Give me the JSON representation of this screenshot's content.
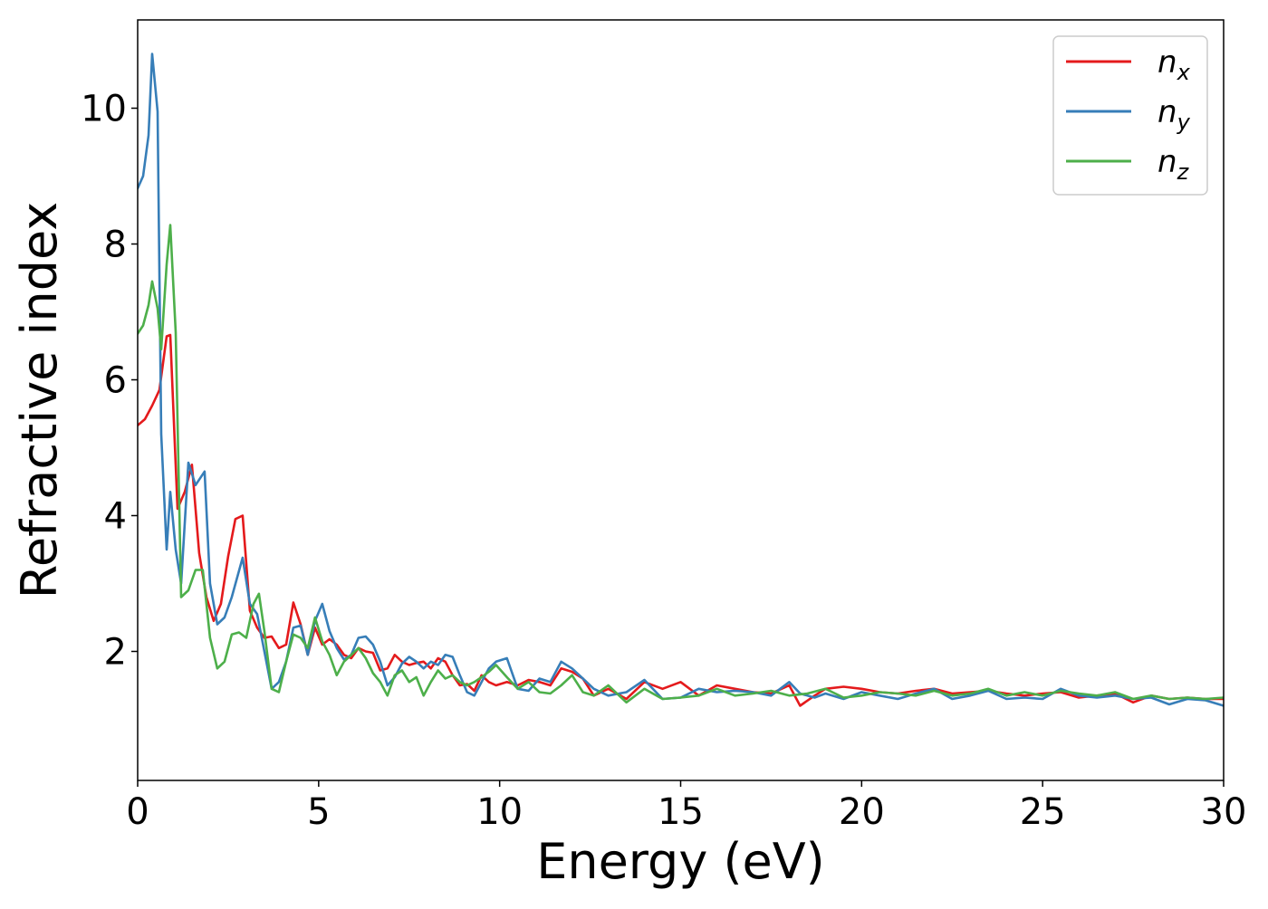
{
  "chart_data": {
    "type": "line",
    "title": "",
    "xlabel": "Energy (eV)",
    "ylabel": "Refractive index",
    "xlim": [
      0,
      30
    ],
    "ylim": [
      0.1,
      11.3
    ],
    "xticks": [
      0,
      5,
      10,
      15,
      20,
      25,
      30
    ],
    "yticks": [
      2,
      4,
      6,
      8,
      10
    ],
    "grid": false,
    "legend_position": "top-right",
    "series": [
      {
        "name": "n",
        "subscript": "x",
        "color": "#e41a1c",
        "x": [
          0,
          0.2,
          0.4,
          0.6,
          0.8,
          0.9,
          1.1,
          1.3,
          1.5,
          1.7,
          1.9,
          2.1,
          2.3,
          2.5,
          2.7,
          2.9,
          3.1,
          3.3,
          3.5,
          3.7,
          3.9,
          4.1,
          4.3,
          4.5,
          4.7,
          4.9,
          5.1,
          5.3,
          5.5,
          5.7,
          5.9,
          6.1,
          6.3,
          6.5,
          6.7,
          6.9,
          7.1,
          7.3,
          7.5,
          7.7,
          7.9,
          8.1,
          8.3,
          8.5,
          8.7,
          8.9,
          9.1,
          9.3,
          9.5,
          9.7,
          9.9,
          10.2,
          10.5,
          10.8,
          11.1,
          11.4,
          11.7,
          12.0,
          12.3,
          12.6,
          13.0,
          13.5,
          14.0,
          14.5,
          15.0,
          15.5,
          16.0,
          16.5,
          17.0,
          17.5,
          18.0,
          18.3,
          18.7,
          19.0,
          19.5,
          20.0,
          20.5,
          21.0,
          21.5,
          22.0,
          22.5,
          23.0,
          23.5,
          24.0,
          24.5,
          25.0,
          25.5,
          26.0,
          26.5,
          27.0,
          27.5,
          28.0,
          28.5,
          29.0,
          29.5,
          30.0
        ],
        "y": [
          5.33,
          5.42,
          5.62,
          5.85,
          6.64,
          6.66,
          4.1,
          4.35,
          4.75,
          3.45,
          2.8,
          2.45,
          2.7,
          3.4,
          3.95,
          4.0,
          2.6,
          2.35,
          2.2,
          2.22,
          2.05,
          2.1,
          2.72,
          2.4,
          1.95,
          2.35,
          2.1,
          2.18,
          2.1,
          1.95,
          1.9,
          2.05,
          2.0,
          1.98,
          1.72,
          1.75,
          1.95,
          1.85,
          1.8,
          1.83,
          1.85,
          1.75,
          1.9,
          1.85,
          1.65,
          1.5,
          1.52,
          1.42,
          1.65,
          1.55,
          1.5,
          1.55,
          1.5,
          1.58,
          1.55,
          1.5,
          1.75,
          1.7,
          1.6,
          1.35,
          1.45,
          1.3,
          1.55,
          1.45,
          1.55,
          1.35,
          1.5,
          1.45,
          1.4,
          1.38,
          1.5,
          1.2,
          1.35,
          1.45,
          1.48,
          1.45,
          1.4,
          1.38,
          1.42,
          1.45,
          1.38,
          1.4,
          1.42,
          1.38,
          1.35,
          1.38,
          1.4,
          1.32,
          1.35,
          1.38,
          1.25,
          1.35,
          1.3,
          1.32,
          1.3,
          1.3
        ]
      },
      {
        "name": "n",
        "subscript": "y",
        "color": "#377eb8",
        "x": [
          0,
          0.15,
          0.3,
          0.4,
          0.55,
          0.65,
          0.8,
          0.9,
          1.05,
          1.2,
          1.4,
          1.6,
          1.85,
          2.0,
          2.2,
          2.4,
          2.6,
          2.9,
          3.1,
          3.3,
          3.5,
          3.7,
          3.9,
          4.1,
          4.3,
          4.5,
          4.7,
          4.9,
          5.1,
          5.3,
          5.5,
          5.7,
          5.9,
          6.1,
          6.3,
          6.5,
          6.7,
          6.9,
          7.1,
          7.3,
          7.5,
          7.7,
          7.9,
          8.1,
          8.3,
          8.5,
          8.7,
          8.9,
          9.1,
          9.3,
          9.5,
          9.7,
          9.9,
          10.2,
          10.5,
          10.8,
          11.1,
          11.4,
          11.7,
          12.0,
          12.3,
          12.6,
          13.0,
          13.5,
          14.0,
          14.5,
          15.0,
          15.5,
          16.0,
          16.5,
          17.0,
          17.5,
          18.0,
          18.3,
          18.7,
          19.0,
          19.5,
          20.0,
          20.5,
          21.0,
          21.5,
          22.0,
          22.5,
          23.0,
          23.5,
          24.0,
          24.5,
          25.0,
          25.5,
          26.0,
          26.5,
          27.0,
          27.5,
          28.0,
          28.5,
          29.0,
          29.5,
          30.0
        ],
        "y": [
          8.82,
          9.0,
          9.6,
          10.8,
          9.95,
          5.2,
          3.5,
          4.35,
          3.5,
          3.0,
          4.78,
          4.45,
          4.65,
          3.0,
          2.4,
          2.5,
          2.8,
          3.38,
          2.7,
          2.55,
          2.0,
          1.45,
          1.55,
          1.85,
          2.35,
          2.38,
          1.95,
          2.45,
          2.7,
          2.3,
          2.05,
          1.88,
          1.95,
          2.2,
          2.22,
          2.1,
          1.85,
          1.5,
          1.62,
          1.82,
          1.92,
          1.85,
          1.75,
          1.85,
          1.8,
          1.95,
          1.92,
          1.65,
          1.4,
          1.35,
          1.55,
          1.75,
          1.85,
          1.9,
          1.45,
          1.42,
          1.6,
          1.55,
          1.85,
          1.75,
          1.6,
          1.45,
          1.35,
          1.4,
          1.58,
          1.3,
          1.32,
          1.45,
          1.4,
          1.42,
          1.4,
          1.35,
          1.55,
          1.38,
          1.32,
          1.38,
          1.3,
          1.4,
          1.35,
          1.3,
          1.38,
          1.45,
          1.3,
          1.35,
          1.42,
          1.3,
          1.32,
          1.3,
          1.45,
          1.35,
          1.32,
          1.35,
          1.3,
          1.32,
          1.22,
          1.3,
          1.28,
          1.2
        ]
      },
      {
        "name": "n",
        "subscript": "z",
        "color": "#4daf4a",
        "x": [
          0,
          0.15,
          0.3,
          0.4,
          0.55,
          0.65,
          0.8,
          0.9,
          1.05,
          1.2,
          1.4,
          1.6,
          1.8,
          2.0,
          2.2,
          2.4,
          2.6,
          2.8,
          3.0,
          3.2,
          3.35,
          3.5,
          3.7,
          3.9,
          4.1,
          4.3,
          4.5,
          4.7,
          4.9,
          5.1,
          5.3,
          5.5,
          5.7,
          5.9,
          6.1,
          6.3,
          6.5,
          6.7,
          6.9,
          7.1,
          7.3,
          7.5,
          7.7,
          7.9,
          8.1,
          8.3,
          8.5,
          8.7,
          8.9,
          9.1,
          9.3,
          9.5,
          9.7,
          9.9,
          10.2,
          10.5,
          10.8,
          11.1,
          11.4,
          11.7,
          12.0,
          12.3,
          12.6,
          13.0,
          13.5,
          14.0,
          14.5,
          15.0,
          15.5,
          16.0,
          16.5,
          17.0,
          17.5,
          18.0,
          18.5,
          19.0,
          19.5,
          20.0,
          20.5,
          21.0,
          21.5,
          22.0,
          22.5,
          23.0,
          23.5,
          24.0,
          24.5,
          25.0,
          25.5,
          26.0,
          26.5,
          27.0,
          27.5,
          28.0,
          28.5,
          29.0,
          29.5,
          30.0
        ],
        "y": [
          6.68,
          6.8,
          7.1,
          7.45,
          7.05,
          6.45,
          7.7,
          8.28,
          6.7,
          2.8,
          2.9,
          3.2,
          3.2,
          2.2,
          1.75,
          1.85,
          2.25,
          2.28,
          2.2,
          2.7,
          2.85,
          2.3,
          1.45,
          1.4,
          1.85,
          2.25,
          2.2,
          2.05,
          2.5,
          2.15,
          1.95,
          1.65,
          1.85,
          1.95,
          2.05,
          1.9,
          1.68,
          1.55,
          1.35,
          1.65,
          1.72,
          1.55,
          1.62,
          1.35,
          1.55,
          1.72,
          1.6,
          1.65,
          1.55,
          1.5,
          1.55,
          1.62,
          1.7,
          1.8,
          1.62,
          1.45,
          1.55,
          1.4,
          1.38,
          1.5,
          1.65,
          1.4,
          1.35,
          1.5,
          1.25,
          1.45,
          1.3,
          1.32,
          1.35,
          1.45,
          1.35,
          1.38,
          1.42,
          1.35,
          1.38,
          1.45,
          1.32,
          1.35,
          1.4,
          1.38,
          1.35,
          1.42,
          1.35,
          1.38,
          1.45,
          1.35,
          1.4,
          1.35,
          1.42,
          1.38,
          1.35,
          1.4,
          1.3,
          1.35,
          1.3,
          1.32,
          1.3,
          1.32
        ]
      }
    ]
  }
}
